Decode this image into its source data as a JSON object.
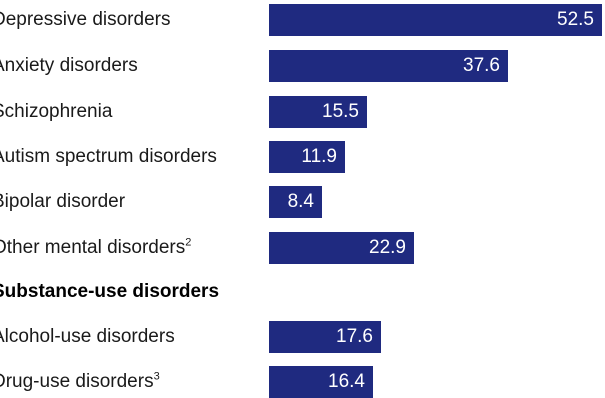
{
  "chart_data": {
    "type": "bar",
    "orientation": "horizontal",
    "bar_color": "#1f2a80",
    "value_label_color": "#ffffff",
    "rows": [
      {
        "kind": "bar",
        "label": "Depressive disorders",
        "visible_label": "Depressive disorders",
        "value": 52.5,
        "value_text": "52.5"
      },
      {
        "kind": "bar",
        "label": "Anxiety disorders",
        "visible_label": "Anxiety disorders",
        "value": 37.6,
        "value_text": "37.6"
      },
      {
        "kind": "bar",
        "label": "Schizophrenia",
        "visible_label": "Schizophrenia",
        "value": 15.5,
        "value_text": "15.5"
      },
      {
        "kind": "bar",
        "label": "Autism spectrum disorders",
        "visible_label": "Autism spectrum disorders",
        "value": 11.9,
        "value_text": "11.9"
      },
      {
        "kind": "bar",
        "label": "Bipolar disorder",
        "visible_label": "Bipolar disorder",
        "value": 8.4,
        "value_text": "8.4"
      },
      {
        "kind": "bar",
        "label": "Other mental disorders",
        "visible_label": "Other mental disorders",
        "footnote": "2",
        "value": 22.9,
        "value_text": "22.9"
      },
      {
        "kind": "heading",
        "label": "Substance-use disorders",
        "visible_label": "Substance-use disorders"
      },
      {
        "kind": "bar",
        "label": "Alcohol-use disorders",
        "visible_label": "Alcohol-use disorders",
        "value": 17.6,
        "value_text": "17.6"
      },
      {
        "kind": "bar",
        "label": "Drug-use disorders",
        "visible_label": "Drug-use disorders",
        "footnote": "3",
        "value": 16.4,
        "value_text": "16.4"
      }
    ]
  }
}
